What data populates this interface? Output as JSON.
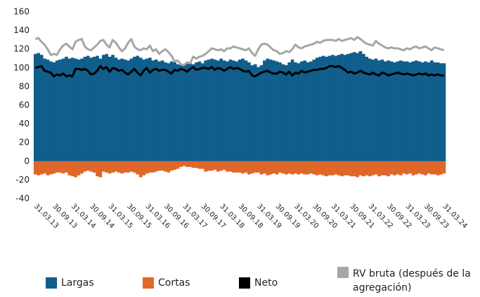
{
  "chart_data": {
    "type": "bar",
    "categories": [
      "31.03.13",
      null,
      null,
      null,
      null,
      null,
      "30.09.13",
      null,
      null,
      null,
      null,
      null,
      "31.03.14",
      null,
      null,
      null,
      null,
      null,
      "30.09.14",
      null,
      null,
      null,
      null,
      null,
      "31.03.15",
      null,
      null,
      null,
      null,
      null,
      "30.09.15",
      null,
      null,
      null,
      null,
      null,
      "31.03.16",
      null,
      null,
      null,
      null,
      null,
      "30.09.16",
      null,
      null,
      null,
      null,
      null,
      "31.03.17",
      null,
      null,
      null,
      null,
      null,
      "30.09.17",
      null,
      null,
      null,
      null,
      null,
      "31.03.18",
      null,
      null,
      null,
      null,
      null,
      "30.09.18",
      null,
      null,
      null,
      null,
      null,
      "31.03.19",
      null,
      null,
      null,
      null,
      null,
      "30.09.19",
      null,
      null,
      null,
      null,
      null,
      "31.03.20",
      null,
      null,
      null,
      null,
      null,
      "30.09.20",
      null,
      null,
      null,
      null,
      null,
      "31.03.21",
      null,
      null,
      null,
      null,
      null,
      "30.09.21",
      null,
      null,
      null,
      null,
      null,
      "31.03.22",
      null,
      null,
      null,
      null,
      null,
      "30.09.22",
      null,
      null,
      null,
      null,
      null,
      "31.03.23",
      null,
      null,
      null,
      null,
      null,
      "30.09.23",
      null,
      null,
      null,
      null,
      null,
      "31.03.24"
    ],
    "series": [
      {
        "name": "Largas",
        "type": "bar",
        "color": "#0f5e8c",
        "values": [
          115,
          116,
          114,
          110,
          109,
          107,
          106,
          108,
          109,
          110,
          112,
          110,
          111,
          110,
          109,
          110,
          112,
          113,
          111,
          112,
          113,
          110,
          114,
          115,
          112,
          114,
          111,
          109,
          110,
          109,
          108,
          110,
          112,
          113,
          111,
          109,
          110,
          111,
          108,
          109,
          107,
          108,
          106,
          105,
          107,
          106,
          104,
          103,
          104,
          106,
          105,
          104,
          106,
          107,
          105,
          108,
          109,
          110,
          109,
          108,
          110,
          108,
          107,
          109,
          108,
          107,
          109,
          110,
          108,
          106,
          103,
          104,
          101,
          103,
          108,
          110,
          109,
          108,
          107,
          106,
          104,
          103,
          106,
          109,
          106,
          105,
          107,
          108,
          106,
          107,
          109,
          111,
          112,
          113,
          112,
          113,
          114,
          113,
          114,
          115,
          114,
          115,
          116,
          117,
          116,
          118,
          115,
          112,
          110,
          109,
          110,
          108,
          109,
          107,
          108,
          107,
          106,
          107,
          108,
          107,
          107,
          106,
          107,
          108,
          107,
          106,
          107,
          106,
          108,
          106,
          106,
          105,
          105
        ]
      },
      {
        "name": "Cortas",
        "type": "bar",
        "color": "#e0672a",
        "values": [
          -14,
          -15,
          -14,
          -13,
          -15,
          -14,
          -13,
          -12,
          -12,
          -13,
          -12,
          -15,
          -16,
          -17,
          -15,
          -13,
          -11,
          -10,
          -11,
          -12,
          -16,
          -17,
          -11,
          -12,
          -13,
          -12,
          -11,
          -12,
          -13,
          -12,
          -12,
          -11,
          -12,
          -14,
          -17,
          -15,
          -13,
          -12,
          -12,
          -11,
          -10,
          -10,
          -11,
          -12,
          -10,
          -9,
          -8,
          -6,
          -5,
          -6,
          -6,
          -7,
          -7,
          -8,
          -8,
          -11,
          -10,
          -10,
          -9,
          -11,
          -10,
          -9,
          -11,
          -11,
          -12,
          -12,
          -12,
          -13,
          -12,
          -14,
          -13,
          -12,
          -12,
          -14,
          -13,
          -15,
          -14,
          -13,
          -14,
          -12,
          -13,
          -14,
          -13,
          -14,
          -13,
          -14,
          -13,
          -14,
          -14,
          -13,
          -14,
          -15,
          -14,
          -15,
          -16,
          -15,
          -15,
          -14,
          -15,
          -16,
          -15,
          -15,
          -16,
          -16,
          -17,
          -15,
          -16,
          -15,
          -16,
          -15,
          -14,
          -16,
          -15,
          -15,
          -16,
          -14,
          -15,
          -14,
          -15,
          -13,
          -14,
          -13,
          -15,
          -14,
          -13,
          -14,
          -15,
          -13,
          -14,
          -14,
          -15,
          -14,
          -13
        ]
      },
      {
        "name": "Neto",
        "type": "line",
        "color": "#000000",
        "values": [
          100,
          101,
          102,
          97,
          96,
          95,
          91,
          93,
          92,
          94,
          91,
          92,
          91,
          99,
          99,
          98,
          99,
          97,
          93,
          94,
          97,
          102,
          99,
          101,
          96,
          100,
          99,
          97,
          98,
          95,
          93,
          96,
          99,
          95,
          92,
          97,
          100,
          95,
          98,
          99,
          97,
          98,
          98,
          96,
          94,
          98,
          97,
          99,
          98,
          96,
          99,
          101,
          98,
          99,
          100,
          100,
          99,
          101,
          98,
          100,
          99,
          97,
          99,
          101,
          99,
          100,
          99,
          97,
          96,
          97,
          92,
          91,
          93,
          95,
          96,
          97,
          95,
          94,
          94,
          96,
          95,
          93,
          96,
          92,
          95,
          94,
          97,
          95,
          96,
          97,
          98,
          98,
          99,
          99,
          100,
          102,
          102,
          101,
          102,
          100,
          98,
          95,
          96,
          94,
          95,
          97,
          95,
          94,
          93,
          95,
          93,
          92,
          95,
          94,
          92,
          93,
          94,
          95,
          94,
          93,
          94,
          93,
          92,
          93,
          94,
          93,
          94,
          92,
          93,
          92,
          93,
          92,
          92
        ]
      },
      {
        "name": "RV bruta (después de la agregación)",
        "type": "line",
        "color": "#a6a6a6",
        "values": [
          131,
          132,
          128,
          125,
          120,
          114,
          115,
          114,
          120,
          124,
          126,
          123,
          120,
          128,
          130,
          131,
          123,
          120,
          119,
          122,
          125,
          129,
          130,
          125,
          122,
          130,
          127,
          122,
          118,
          121,
          127,
          131,
          123,
          120,
          119,
          121,
          120,
          124,
          118,
          120,
          115,
          118,
          120,
          117,
          113,
          107,
          108,
          104,
          103,
          106,
          105,
          112,
          110,
          112,
          113,
          115,
          118,
          121,
          120,
          119,
          120,
          118,
          121,
          121,
          123,
          122,
          121,
          120,
          119,
          121,
          116,
          113,
          120,
          125,
          126,
          125,
          122,
          119,
          118,
          115,
          116,
          118,
          117,
          120,
          125,
          122,
          121,
          123,
          124,
          125,
          126,
          128,
          127,
          129,
          130,
          130,
          130,
          129,
          131,
          129,
          130,
          131,
          132,
          130,
          133,
          131,
          128,
          126,
          125,
          124,
          129,
          126,
          124,
          122,
          121,
          122,
          121,
          121,
          120,
          119,
          121,
          120,
          122,
          123,
          121,
          122,
          123,
          121,
          119,
          122,
          121,
          120,
          119
        ]
      }
    ],
    "ylim": [
      -40,
      160
    ],
    "yticks": [
      -40,
      -20,
      0,
      20,
      40,
      60,
      80,
      100,
      120,
      140,
      160
    ],
    "grid": false
  }
}
